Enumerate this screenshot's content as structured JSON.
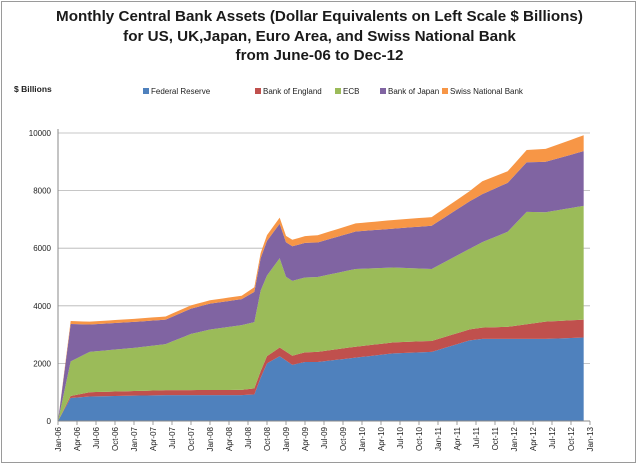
{
  "chart_data": {
    "type": "area",
    "stacked": true,
    "title_lines": [
      "Monthly Central Bank Assets (Dollar Equivalents on Left Scale $ Billions)",
      "for US, UK,Japan, Euro Area, and Swiss National Bank",
      "from June-06 to Dec-12"
    ],
    "ylabel": "$ Billions",
    "ylim": [
      0,
      10000
    ],
    "yticks": [
      0,
      2000,
      4000,
      6000,
      8000,
      10000
    ],
    "xticks": [
      "Jan-06",
      "Apr-06",
      "Jul-06",
      "Oct-06",
      "Jan-07",
      "Apr-07",
      "Jul-07",
      "Oct-07",
      "Jan-08",
      "Apr-08",
      "Jul-08",
      "Oct-08",
      "Jan-09",
      "Apr-09",
      "Jul-09",
      "Oct-09",
      "Jan-10",
      "Apr-10",
      "Jul-10",
      "Oct-10",
      "Jan-11",
      "Apr-11",
      "Jul-11",
      "Oct-11",
      "Jan-12",
      "Apr-12",
      "Jul-12",
      "Oct-12",
      "Jan-13"
    ],
    "legend_position": "top",
    "grid": "horizontal",
    "x_start": "2006-01",
    "x_end": "2013-01",
    "series": [
      {
        "name": "Federal Reserve",
        "color": "#4f81bd",
        "points": [
          [
            "2006-01",
            0
          ],
          [
            "2006-03",
            800
          ],
          [
            "2006-06",
            850
          ],
          [
            "2007-06",
            900
          ],
          [
            "2008-06",
            900
          ],
          [
            "2008-08",
            920
          ],
          [
            "2008-09",
            1500
          ],
          [
            "2008-10",
            2000
          ],
          [
            "2008-12",
            2250
          ],
          [
            "2009-02",
            1950
          ],
          [
            "2009-04",
            2050
          ],
          [
            "2009-06",
            2050
          ],
          [
            "2009-08",
            2100
          ],
          [
            "2009-12",
            2200
          ],
          [
            "2010-06",
            2350
          ],
          [
            "2010-12",
            2400
          ],
          [
            "2011-06",
            2800
          ],
          [
            "2011-08",
            2850
          ],
          [
            "2011-12",
            2850
          ],
          [
            "2012-06",
            2850
          ],
          [
            "2012-12",
            2900
          ]
        ]
      },
      {
        "name": "Bank of England",
        "color": "#c0504d",
        "points": [
          [
            "2006-01",
            0
          ],
          [
            "2006-03",
            70
          ],
          [
            "2006-06",
            150
          ],
          [
            "2007-06",
            170
          ],
          [
            "2008-06",
            180
          ],
          [
            "2008-09",
            230
          ],
          [
            "2008-12",
            300
          ],
          [
            "2009-06",
            350
          ],
          [
            "2009-12",
            380
          ],
          [
            "2010-06",
            380
          ],
          [
            "2010-12",
            380
          ],
          [
            "2011-06",
            380
          ],
          [
            "2011-12",
            420
          ],
          [
            "2012-06",
            600
          ],
          [
            "2012-12",
            620
          ]
        ]
      },
      {
        "name": "ECB",
        "color": "#9bbb59",
        "points": [
          [
            "2006-01",
            0
          ],
          [
            "2006-03",
            1200
          ],
          [
            "2006-06",
            1400
          ],
          [
            "2007-01",
            1500
          ],
          [
            "2007-06",
            1600
          ],
          [
            "2007-10",
            1950
          ],
          [
            "2008-01",
            2100
          ],
          [
            "2008-06",
            2250
          ],
          [
            "2008-08",
            2300
          ],
          [
            "2008-09",
            2800
          ],
          [
            "2008-10",
            2800
          ],
          [
            "2008-12",
            3100
          ],
          [
            "2009-01",
            2600
          ],
          [
            "2009-06",
            2600
          ],
          [
            "2009-12",
            2700
          ],
          [
            "2010-06",
            2600
          ],
          [
            "2010-12",
            2500
          ],
          [
            "2011-06",
            2800
          ],
          [
            "2011-12",
            3300
          ],
          [
            "2012-03",
            3900
          ],
          [
            "2012-06",
            3800
          ],
          [
            "2012-12",
            3950
          ]
        ]
      },
      {
        "name": "Bank of Japan",
        "color": "#8064a2",
        "points": [
          [
            "2006-01",
            0
          ],
          [
            "2006-03",
            1300
          ],
          [
            "2006-06",
            950
          ],
          [
            "2007-01",
            900
          ],
          [
            "2007-06",
            850
          ],
          [
            "2008-01",
            900
          ],
          [
            "2008-06",
            900
          ],
          [
            "2008-10",
            1200
          ],
          [
            "2008-12",
            1200
          ],
          [
            "2009-06",
            1200
          ],
          [
            "2009-12",
            1300
          ],
          [
            "2010-06",
            1350
          ],
          [
            "2010-12",
            1500
          ],
          [
            "2011-06",
            1650
          ],
          [
            "2011-12",
            1700
          ],
          [
            "2012-06",
            1750
          ],
          [
            "2012-12",
            1900
          ]
        ]
      },
      {
        "name": "Swiss National Bank",
        "color": "#f79646",
        "points": [
          [
            "2006-01",
            0
          ],
          [
            "2006-03",
            100
          ],
          [
            "2006-06",
            100
          ],
          [
            "2007-06",
            110
          ],
          [
            "2008-06",
            120
          ],
          [
            "2008-10",
            200
          ],
          [
            "2009-06",
            250
          ],
          [
            "2009-12",
            280
          ],
          [
            "2010-06",
            300
          ],
          [
            "2010-12",
            300
          ],
          [
            "2011-06",
            350
          ],
          [
            "2011-08",
            450
          ],
          [
            "2011-12",
            400
          ],
          [
            "2012-06",
            450
          ],
          [
            "2012-12",
            550
          ]
        ]
      }
    ]
  }
}
